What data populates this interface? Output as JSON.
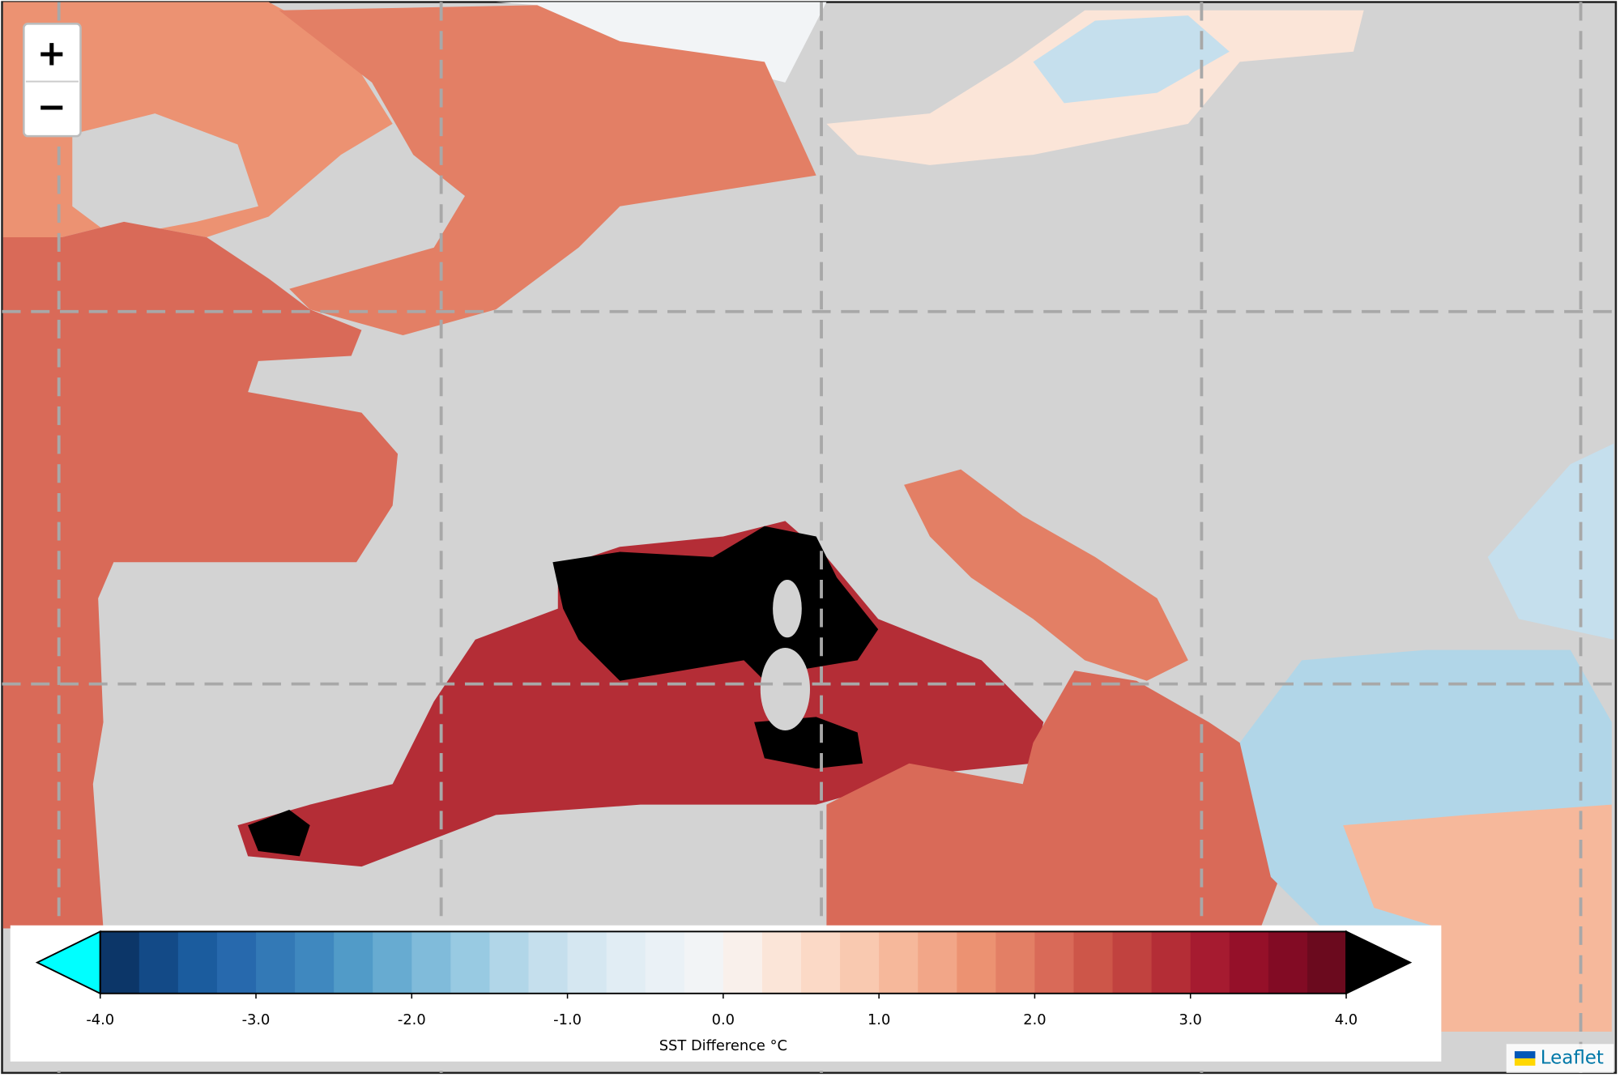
{
  "zoom_controls": {
    "zoom_in": "+",
    "zoom_out": "−"
  },
  "colorbar": {
    "label": "SST Difference °C",
    "lim": [
      -4,
      4
    ],
    "ticks": [
      {
        "value": -4,
        "label": "-4.0"
      },
      {
        "value": -3,
        "label": "-3.0"
      },
      {
        "value": -2,
        "label": "-2.0"
      },
      {
        "value": -1,
        "label": "-1.0"
      },
      {
        "value": 0,
        "label": "0.0"
      },
      {
        "value": 1,
        "label": "1.0"
      },
      {
        "value": 2,
        "label": "2.0"
      },
      {
        "value": 3,
        "label": "3.0"
      },
      {
        "value": 4,
        "label": "4.0"
      }
    ],
    "colors": [
      "#0c3668",
      "#134a87",
      "#1b5c9e",
      "#2769ad",
      "#3379b6",
      "#3f88bf",
      "#519bc8",
      "#67abd1",
      "#80bbda",
      "#98cae2",
      "#b1d6e8",
      "#c5dfed",
      "#d5e7f1",
      "#e1edf4",
      "#eaf1f6",
      "#f2f4f6",
      "#f9f0eb",
      "#fbe5d8",
      "#fbd9c6",
      "#f9c9b0",
      "#f6b89b",
      "#f2a688",
      "#ec9272",
      "#e37f65",
      "#d96a58",
      "#cd5649",
      "#c1423f",
      "#b42d36",
      "#a61b30",
      "#951029",
      "#820b24",
      "#6b0a1e"
    ],
    "under_color": "#00ffff",
    "over_color": "#000000"
  },
  "attribution": {
    "text": "Leaflet"
  }
}
